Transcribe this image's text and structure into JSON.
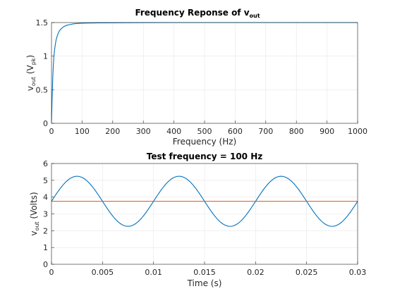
{
  "chart_data": [
    {
      "type": "line",
      "title": "Frequency Reponse of v",
      "title_subscript": "out",
      "xlabel": "Frequency (Hz)",
      "ylabel_main": "v",
      "ylabel_sub": "out",
      "ylabel_mid": " (V",
      "ylabel_sub2": "pk",
      "ylabel_end": ")",
      "xlim": [
        0,
        1000
      ],
      "ylim": [
        0,
        1.5
      ],
      "xticks": [
        "0",
        "100",
        "200",
        "300",
        "400",
        "500",
        "600",
        "700",
        "800",
        "900",
        "1000"
      ],
      "yticks": [
        "0",
        "0.5",
        "1",
        "1.5"
      ],
      "grid": true,
      "series": [
        {
          "color": "#0072BD",
          "x": [
            0,
            2,
            4,
            6,
            8,
            10,
            12,
            15,
            18,
            21,
            25,
            30,
            35,
            40,
            50,
            60,
            70,
            80,
            100,
            120,
            150,
            200,
            250,
            300,
            400,
            500,
            600,
            700,
            800,
            900,
            1000
          ],
          "y": [
            0.04,
            0.37,
            0.66,
            0.86,
            1.0,
            1.09,
            1.16,
            1.24,
            1.29,
            1.33,
            1.37,
            1.4,
            1.42,
            1.44,
            1.46,
            1.47,
            1.48,
            1.485,
            1.49,
            1.493,
            1.495,
            1.497,
            1.498,
            1.499,
            1.5,
            1.5,
            1.5,
            1.5,
            1.5,
            1.5,
            1.5
          ]
        }
      ]
    },
    {
      "type": "line",
      "title": "Test frequency = 100 Hz",
      "xlabel": "Time (s)",
      "ylabel_main": "v",
      "ylabel_sub": "out",
      "ylabel_end": " (Volts)",
      "xlim": [
        0,
        0.03
      ],
      "ylim": [
        0,
        6
      ],
      "xticks": [
        "0",
        "0.005",
        "0.01",
        "0.015",
        "0.02",
        "0.025",
        "0.03"
      ],
      "yticks": [
        "0",
        "1",
        "2",
        "3",
        "4",
        "5",
        "6"
      ],
      "grid": true,
      "series": [
        {
          "color": "#0072BD",
          "function": "3.75 + 1.49*sin(2*pi*100*t)"
        },
        {
          "color": "#D95319",
          "x": [
            0,
            0.03
          ],
          "y": [
            3.75,
            3.75
          ]
        }
      ]
    }
  ]
}
